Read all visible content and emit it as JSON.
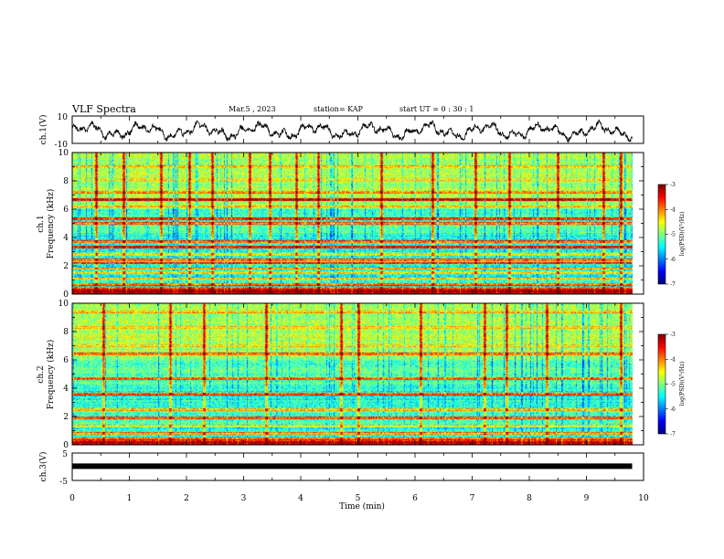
{
  "header": {
    "title": "VLF Spectra",
    "date": "Mar.5 , 2023",
    "station": "station= KAP",
    "start": "start UT = 0 : 30 : 1"
  },
  "chart_data": [
    {
      "name": "ch1-waveform",
      "type": "line",
      "ylabel": "ch.1(V)",
      "ylim": [
        -10,
        10
      ],
      "yticks": [
        "10",
        "-10"
      ],
      "xlim": [
        0,
        10
      ],
      "trace_range_min": [
        0,
        9.8
      ]
    },
    {
      "name": "ch1-spectrogram",
      "type": "heatmap",
      "ylabel": "ch.1 Frequency (kHz)",
      "ylabel_line1": "ch.1",
      "ylabel_line2": "Frequency (kHz)",
      "ylim": [
        0,
        10
      ],
      "yticks": [
        "0",
        "2",
        "4",
        "6",
        "8",
        "10"
      ],
      "xlim": [
        0,
        10
      ],
      "data_end_min": 9.8,
      "colorbar": {
        "label": "log(PSD)(V²/Hz)",
        "range": [
          -7,
          -3
        ],
        "ticks": [
          "-3",
          "-4",
          "-5",
          "-6",
          "-7"
        ]
      },
      "bands_khz": [
        {
          "f": 0.1,
          "level": -3.2
        },
        {
          "f": 0.3,
          "level": -3.4
        },
        {
          "f": 0.7,
          "level": -4.0
        },
        {
          "f": 1.1,
          "level": -4.4
        },
        {
          "f": 1.5,
          "level": -4.6
        },
        {
          "f": 1.8,
          "level": -4.2
        },
        {
          "f": 2.2,
          "level": -3.6
        },
        {
          "f": 2.4,
          "level": -4.0
        },
        {
          "f": 2.8,
          "level": -4.6
        },
        {
          "f": 3.3,
          "level": -3.8
        },
        {
          "f": 3.7,
          "level": -4.0
        },
        {
          "f": 4.5,
          "level": -5.6
        },
        {
          "f": 5.0,
          "level": -3.9
        },
        {
          "f": 5.3,
          "level": -3.8
        },
        {
          "f": 6.2,
          "level": -4.4
        },
        {
          "f": 6.7,
          "level": -3.5
        },
        {
          "f": 7.2,
          "level": -4.2
        },
        {
          "f": 8.1,
          "level": -4.6
        },
        {
          "f": 9.0,
          "level": -4.5
        }
      ],
      "sferics_min": [
        0.42,
        0.9,
        1.55,
        2.05,
        2.45,
        3.1,
        3.45,
        3.92,
        4.3,
        5.4,
        6.3,
        7.05,
        7.65,
        8.5,
        9.3,
        9.6
      ]
    },
    {
      "name": "ch2-spectrogram",
      "type": "heatmap",
      "ylabel": "ch.2 Frequency (kHz)",
      "ylabel_line1": "ch.2",
      "ylabel_line2": "Frequency (kHz)",
      "ylim": [
        0,
        10
      ],
      "yticks": [
        "0",
        "2",
        "4",
        "6",
        "8",
        "10"
      ],
      "xlim": [
        0,
        10
      ],
      "data_end_min": 9.8,
      "colorbar": {
        "label": "log(PSD)(V²/Hz)",
        "range": [
          -7,
          -3
        ],
        "ticks": [
          "-3",
          "-4",
          "-5",
          "-6",
          "-7"
        ]
      },
      "bands_khz": [
        {
          "f": 0.1,
          "level": -3.2
        },
        {
          "f": 0.3,
          "level": -3.6
        },
        {
          "f": 0.8,
          "level": -4.2
        },
        {
          "f": 1.3,
          "level": -4.8
        },
        {
          "f": 1.9,
          "level": -3.9
        },
        {
          "f": 2.5,
          "level": -4.4
        },
        {
          "f": 3.6,
          "level": -3.9
        },
        {
          "f": 4.7,
          "level": -4.0
        },
        {
          "f": 6.4,
          "level": -4.0
        },
        {
          "f": 7.0,
          "level": -4.6
        },
        {
          "f": 8.3,
          "level": -4.5
        },
        {
          "f": 9.4,
          "level": -4.4
        }
      ],
      "sferics_min": [
        0.55,
        1.72,
        2.3,
        3.4,
        4.7,
        5.0,
        6.1,
        7.22,
        7.6,
        8.3,
        9.6
      ]
    },
    {
      "name": "ch3-waveform",
      "type": "line",
      "ylabel": "ch.3(V)",
      "ylim": [
        -5,
        5
      ],
      "yticks": [
        "5",
        "-5"
      ],
      "xlim": [
        0,
        10
      ],
      "level_v": 0.2,
      "trace_range_min": [
        0,
        9.8
      ]
    }
  ],
  "xaxis": {
    "label": "Time (min)",
    "ticks": [
      "0",
      "1",
      "2",
      "3",
      "4",
      "5",
      "6",
      "7",
      "8",
      "9",
      "10"
    ]
  }
}
